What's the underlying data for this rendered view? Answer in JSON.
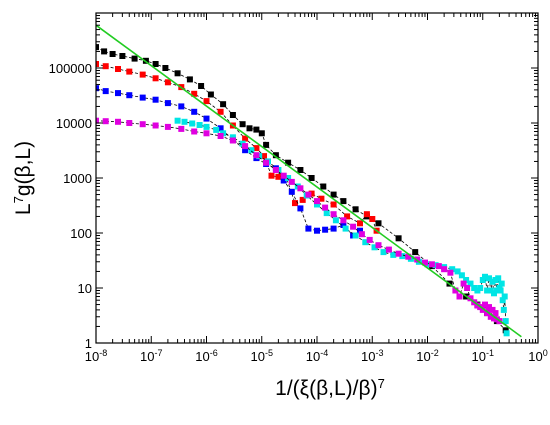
{
  "chart_data": {
    "type": "scatter",
    "title": "",
    "xlabel": "1/(ξ(β,L)/β)",
    "xlabel_superscript": "7",
    "ylabel_prefix": "L",
    "ylabel_superscript": "7",
    "ylabel_rest": "g(β,L)",
    "x_scale": "log",
    "y_scale": "log",
    "xlim": [
      1e-08,
      1
    ],
    "ylim": [
      1,
      1000000
    ],
    "grid": false,
    "legend": "none",
    "x_ticks": [
      {
        "base": "10",
        "exp": "-8"
      },
      {
        "base": "10",
        "exp": "-7"
      },
      {
        "base": "10",
        "exp": "-6"
      },
      {
        "base": "10",
        "exp": "-5"
      },
      {
        "base": "10",
        "exp": "-4"
      },
      {
        "base": "10",
        "exp": "-3"
      },
      {
        "base": "10",
        "exp": "-2"
      },
      {
        "base": "10",
        "exp": "-1"
      },
      {
        "base": "10",
        "exp": "0"
      }
    ],
    "y_ticks": [
      "1",
      "10",
      "100",
      "1000",
      "10000",
      "100000"
    ],
    "fit_line": {
      "color": "#22cc22",
      "points": [
        [
          1e-08,
          600000
        ],
        [
          0.5,
          1.3
        ]
      ]
    },
    "series": [
      {
        "color": "#000000",
        "points": [
          [
            1e-08,
            240000
          ],
          [
            1.4e-08,
            200000
          ],
          [
            2e-08,
            180000
          ],
          [
            3e-08,
            165000
          ],
          [
            5e-08,
            148000
          ],
          [
            8e-08,
            135000
          ],
          [
            1.2e-07,
            118000
          ],
          [
            1.8e-07,
            100000
          ],
          [
            3e-07,
            80000
          ],
          [
            5e-07,
            62000
          ],
          [
            8e-07,
            47000
          ],
          [
            1.2e-06,
            33000
          ],
          [
            2e-06,
            22000
          ],
          [
            3e-06,
            14000
          ],
          [
            4.5e-06,
            9500
          ],
          [
            6e-06,
            8000
          ],
          [
            8e-06,
            7600
          ],
          [
            1e-05,
            6500
          ],
          [
            1.2e-05,
            4000
          ],
          [
            1.8e-05,
            2600
          ],
          [
            3e-05,
            1900
          ],
          [
            5e-05,
            1400
          ],
          [
            8e-05,
            1000
          ],
          [
            0.00013,
            700
          ],
          [
            0.0002,
            500
          ],
          [
            0.0003,
            380
          ],
          [
            0.0005,
            270
          ],
          [
            0.0008,
            200
          ],
          [
            0.0013,
            150
          ],
          [
            0.003,
            80
          ],
          [
            0.006,
            45
          ],
          [
            0.012,
            25
          ],
          [
            0.025,
            12
          ],
          [
            0.05,
            7
          ],
          [
            0.08,
            5
          ],
          [
            0.12,
            3.5
          ],
          [
            0.18,
            2.5
          ],
          [
            0.26,
            1.7
          ]
        ]
      },
      {
        "color": "#ff0000",
        "points": [
          [
            1e-08,
            118000
          ],
          [
            1.5e-08,
            108000
          ],
          [
            2.5e-08,
            96000
          ],
          [
            4e-08,
            86000
          ],
          [
            7e-08,
            76000
          ],
          [
            1.2e-07,
            65000
          ],
          [
            2e-07,
            55000
          ],
          [
            3.5e-07,
            45000
          ],
          [
            6e-07,
            34000
          ],
          [
            1e-06,
            25000
          ],
          [
            1.8e-06,
            16000
          ],
          [
            3e-06,
            9000
          ],
          [
            5e-06,
            5200
          ],
          [
            8e-06,
            3500
          ],
          [
            1.1e-05,
            2500
          ],
          [
            1.5e-05,
            1100
          ],
          [
            2e-05,
            1050
          ],
          [
            2.8e-05,
            1000
          ],
          [
            4e-05,
            350
          ],
          [
            5.5e-05,
            400
          ],
          [
            8e-05,
            520
          ],
          [
            0.00012,
            420
          ],
          [
            0.0002,
            330
          ],
          [
            0.00035,
            200
          ],
          [
            0.0006,
            150
          ],
          [
            0.0008,
            220
          ],
          [
            0.001,
            180
          ],
          [
            0.0012,
            110
          ]
        ]
      },
      {
        "color": "#0000ff",
        "points": [
          [
            1e-08,
            43000
          ],
          [
            1.5e-08,
            38000
          ],
          [
            2.5e-08,
            35000
          ],
          [
            4e-08,
            32000
          ],
          [
            7e-08,
            29000
          ],
          [
            1.2e-07,
            26500
          ],
          [
            2e-07,
            23000
          ],
          [
            3.5e-07,
            20000
          ],
          [
            6e-07,
            16000
          ],
          [
            1e-06,
            12000
          ],
          [
            1.8e-06,
            8000
          ],
          [
            3e-06,
            5000
          ],
          [
            5e-06,
            3200
          ],
          [
            8e-06,
            2300
          ],
          [
            1.2e-05,
            1800
          ],
          [
            1.8e-05,
            1500
          ],
          [
            2.5e-05,
            900
          ],
          [
            3.5e-05,
            560
          ],
          [
            5e-05,
            280
          ],
          [
            7e-05,
            120
          ],
          [
            0.0001,
            110
          ],
          [
            0.00014,
            115
          ],
          [
            0.0002,
            120
          ],
          [
            0.0003,
            140
          ],
          [
            0.00045,
            90
          ],
          [
            0.0006,
            110
          ]
        ]
      },
      {
        "color": "#00e5e5",
        "points": [
          [
            3e-07,
            11000
          ],
          [
            4e-07,
            10500
          ],
          [
            5.5e-07,
            9800
          ],
          [
            7.5e-07,
            9200
          ],
          [
            1e-06,
            8500
          ],
          [
            1.5e-06,
            7500
          ],
          [
            2e-06,
            6500
          ],
          [
            3e-06,
            5500
          ],
          [
            4.5e-06,
            4200
          ],
          [
            6.5e-06,
            3200
          ],
          [
            9e-06,
            2500
          ],
          [
            1.3e-05,
            2000
          ],
          [
            2e-05,
            1400
          ],
          [
            3e-05,
            1000
          ],
          [
            4.5e-05,
            700
          ],
          [
            6.5e-05,
            480
          ],
          [
            0.0001,
            330
          ],
          [
            0.00015,
            230
          ],
          [
            0.00022,
            170
          ],
          [
            0.00033,
            120
          ],
          [
            0.0005,
            90
          ],
          [
            0.00075,
            68
          ],
          [
            0.0011,
            55
          ],
          [
            0.0016,
            45
          ],
          [
            0.0024,
            40
          ],
          [
            0.0035,
            38
          ],
          [
            0.005,
            34
          ],
          [
            0.007,
            30
          ],
          [
            0.01,
            27
          ],
          [
            0.014,
            26
          ],
          [
            0.02,
            24
          ],
          [
            0.028,
            22
          ],
          [
            0.035,
            20
          ],
          [
            0.042,
            17
          ],
          [
            0.05,
            14
          ],
          [
            0.06,
            12
          ],
          [
            0.07,
            10
          ],
          [
            0.08,
            9
          ],
          [
            0.09,
            10
          ],
          [
            0.1,
            14
          ],
          [
            0.11,
            16
          ],
          [
            0.12,
            9
          ],
          [
            0.13,
            15
          ],
          [
            0.14,
            9
          ],
          [
            0.15,
            13
          ],
          [
            0.16,
            8
          ],
          [
            0.17,
            14
          ],
          [
            0.18,
            9
          ],
          [
            0.19,
            15
          ],
          [
            0.2,
            10
          ],
          [
            0.21,
            9
          ],
          [
            0.22,
            12
          ],
          [
            0.23,
            6
          ],
          [
            0.24,
            4
          ],
          [
            0.25,
            7
          ],
          [
            0.26,
            2.5
          ],
          [
            0.27,
            1.5
          ]
        ]
      },
      {
        "color": "#e000e0",
        "points": [
          [
            1e-08,
            11000
          ],
          [
            1.5e-08,
            10800
          ],
          [
            2.5e-08,
            10500
          ],
          [
            4e-08,
            10000
          ],
          [
            7e-08,
            9500
          ],
          [
            1.2e-07,
            9000
          ],
          [
            2e-07,
            8500
          ],
          [
            3.5e-07,
            7800
          ],
          [
            6e-07,
            7000
          ],
          [
            1e-06,
            6500
          ],
          [
            1.8e-06,
            5800
          ],
          [
            3e-06,
            4800
          ],
          [
            5e-06,
            3800
          ],
          [
            8e-06,
            2600
          ],
          [
            1.2e-05,
            1900
          ],
          [
            1.8e-05,
            1400
          ],
          [
            2.5e-05,
            1100
          ],
          [
            3.5e-05,
            850
          ],
          [
            5e-05,
            650
          ],
          [
            7e-05,
            500
          ],
          [
            0.0001,
            380
          ],
          [
            0.00014,
            290
          ],
          [
            0.0002,
            220
          ],
          [
            0.0003,
            170
          ],
          [
            0.00045,
            130
          ],
          [
            0.00065,
            95
          ],
          [
            0.0009,
            75
          ],
          [
            0.0013,
            60
          ],
          [
            0.002,
            50
          ],
          [
            0.003,
            42
          ],
          [
            0.0045,
            37
          ],
          [
            0.0065,
            33
          ],
          [
            0.009,
            29
          ],
          [
            0.012,
            27
          ],
          [
            0.016,
            25
          ],
          [
            0.02,
            22
          ],
          [
            0.026,
            19
          ],
          [
            0.032,
            9
          ],
          [
            0.038,
            7
          ],
          [
            0.045,
            12
          ],
          [
            0.052,
            10
          ],
          [
            0.06,
            6.5
          ],
          [
            0.07,
            5.5
          ],
          [
            0.08,
            4.8
          ],
          [
            0.09,
            4.5
          ],
          [
            0.1,
            4
          ],
          [
            0.11,
            5
          ],
          [
            0.12,
            3.5
          ],
          [
            0.13,
            4.5
          ],
          [
            0.14,
            3
          ],
          [
            0.15,
            4
          ],
          [
            0.16,
            2.8
          ],
          [
            0.17,
            3.5
          ],
          [
            0.18,
            2.7
          ],
          [
            0.2,
            2.5
          ]
        ]
      }
    ]
  }
}
